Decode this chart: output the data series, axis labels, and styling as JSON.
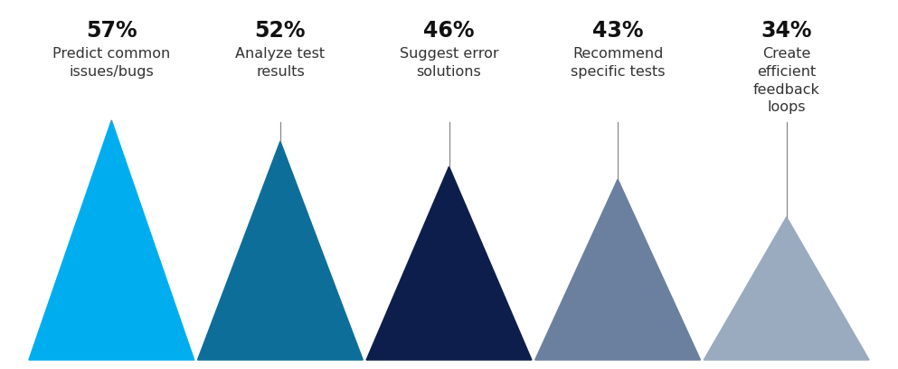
{
  "categories": [
    {
      "pct": "57%",
      "label": "Predict common\nissues/bugs",
      "color": "#00AEEF",
      "value": 57
    },
    {
      "pct": "52%",
      "label": "Analyze test\nresults",
      "color": "#0D6E9A",
      "value": 52
    },
    {
      "pct": "46%",
      "label": "Suggest error\nsolutions",
      "color": "#0D1E4C",
      "value": 46
    },
    {
      "pct": "43%",
      "label": "Recommend\nspecific tests",
      "color": "#6B7F9E",
      "value": 43
    },
    {
      "pct": "34%",
      "label": "Create\nefficient\nfeedback\nloops",
      "color": "#9AAABF",
      "value": 34
    }
  ],
  "background_color": "#FFFFFF",
  "max_value": 57,
  "pct_fontsize": 17,
  "label_fontsize": 11.5,
  "line_color": "#888888",
  "fig_width": 9.93,
  "fig_height": 4.08
}
